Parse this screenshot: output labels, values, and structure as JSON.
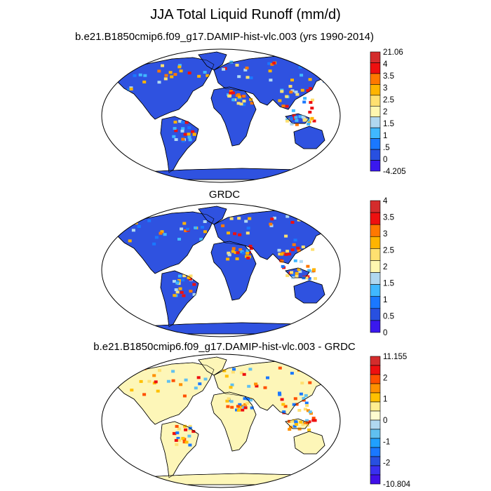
{
  "title": "JJA Total Liquid Runoff (mm/d)",
  "panels": [
    {
      "title": "b.e21.B1850cmip6.f09_g17.DAMIP-hist-vlc.003 (yrs 1990-2014)",
      "colorbar": {
        "labels": [
          "21.06",
          "4",
          "3.5",
          "3",
          "2.5",
          "2",
          "1.5",
          "1",
          ".5",
          "0",
          "-4.205"
        ],
        "colors": [
          "#d42c2c",
          "#ee1010",
          "#ff7800",
          "#ffb400",
          "#ffe070",
          "#fff7b0",
          "#b0d8f0",
          "#40b8ff",
          "#1a78ff",
          "#2850e0",
          "#3a18ee"
        ]
      },
      "style": "runoff"
    },
    {
      "title": "GRDC",
      "colorbar": {
        "labels": [
          "4",
          "3.5",
          "3",
          "2.5",
          "2",
          "1.5",
          "1",
          "0.5",
          "0"
        ],
        "colors": [
          "#d42c2c",
          "#ee1010",
          "#ff7800",
          "#ffb400",
          "#ffe070",
          "#fff7b0",
          "#b0d8f0",
          "#40b8ff",
          "#1a78ff",
          "#2850e0",
          "#3a18ee"
        ]
      },
      "style": "runoff"
    },
    {
      "title": "b.e21.B1850cmip6.f09_g17.DAMIP-hist-vlc.003 - GRDC",
      "colorbar": {
        "labels": [
          "11.155",
          "2",
          "1",
          "0",
          "-1",
          "-2",
          "-10.804"
        ],
        "colors": [
          "#d42c2c",
          "#ee1010",
          "#ff5000",
          "#ff9000",
          "#ffc000",
          "#ffee90",
          "#fffcd0",
          "#b0d8f0",
          "#60c0f0",
          "#20a0ff",
          "#1a78ff",
          "#2850e0",
          "#3a30f0",
          "#4010e8"
        ]
      },
      "style": "diff"
    }
  ]
}
